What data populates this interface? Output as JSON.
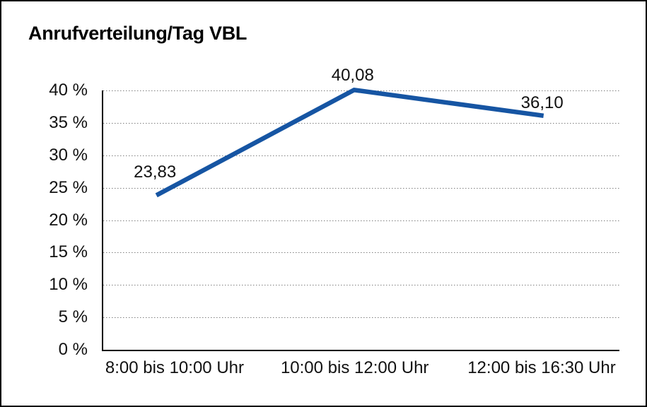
{
  "chart_data": {
    "type": "line",
    "title": "Anrufverteilung/Tag VBL",
    "categories": [
      "8:00 bis 10:00 Uhr",
      "10:00 bis 12:00 Uhr",
      "12:00 bis 16:30 Uhr"
    ],
    "values": [
      23.83,
      40.08,
      36.1
    ],
    "point_labels": [
      "23,83",
      "40,08",
      "36,10"
    ],
    "y_tick_labels": [
      "0 %",
      "5 %",
      "10 %",
      "15 %",
      "20 %",
      "25 %",
      "30 %",
      "35 %",
      "40 %"
    ],
    "ylim": [
      0,
      40
    ],
    "y_tick_step": 5,
    "grid": "horizontal-dotted",
    "legend": "none",
    "xlabel": "",
    "ylabel": "",
    "line_color": "#1655A3",
    "gridline_color": "#808080",
    "axis_color": "#000000",
    "text_color": "#111111",
    "background_color": "#ffffff"
  }
}
